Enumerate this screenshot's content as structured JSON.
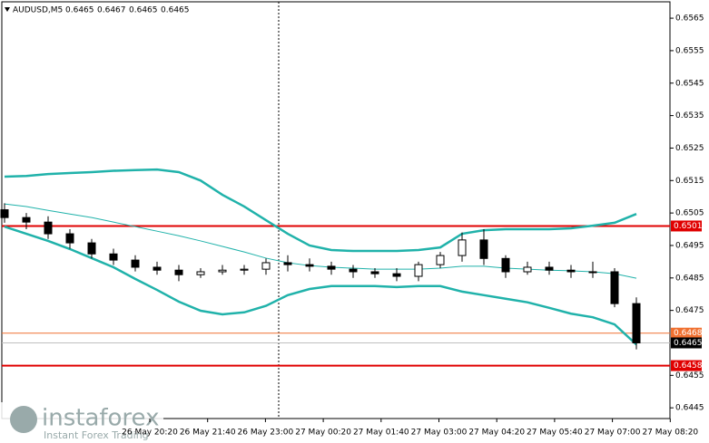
{
  "chart_data": {
    "type": "candlestick",
    "title": "AUDUSD,M5",
    "header_ohlc": [
      0.6465,
      0.6467,
      0.6465,
      0.6465
    ],
    "ylim": [
      0.64417,
      0.65706
    ],
    "yticks": [
      0.6565,
      0.6555,
      0.6545,
      0.6535,
      0.6525,
      0.6515,
      0.6505,
      0.6495,
      0.6485,
      0.6475,
      0.6455,
      0.6445
    ],
    "xlabels": [
      "26 May 20:20",
      "26 May 21:40",
      "26 May 23:00",
      "27 May 00:20",
      "27 May 01:40",
      "27 May 03:00",
      "27 May 04:20",
      "27 May 05:40",
      "27 May 07:00",
      "27 May 08:20"
    ],
    "open": [
      0.6506,
      0.65036,
      0.65022,
      0.64986,
      0.64958,
      0.64924,
      0.64905,
      0.64883,
      0.64874,
      0.6486,
      0.64869,
      0.64874,
      0.64877,
      0.64897,
      0.64891,
      0.64886,
      0.64877,
      0.64869,
      0.64863,
      0.64855,
      0.64891,
      0.64919,
      0.64967,
      0.6491,
      0.64869,
      0.64883,
      0.64874,
      0.64869,
      0.64869,
      0.64771
    ],
    "high": [
      0.6508,
      0.6505,
      0.6504,
      0.65,
      0.6497,
      0.6494,
      0.6492,
      0.649,
      0.6489,
      0.6488,
      0.6489,
      0.6489,
      0.6491,
      0.6492,
      0.6491,
      0.649,
      0.6489,
      0.6488,
      0.6488,
      0.649,
      0.6493,
      0.6499,
      0.65,
      0.6492,
      0.649,
      0.649,
      0.6489,
      0.649,
      0.6488,
      0.6479
    ],
    "low": [
      0.6502,
      0.65,
      0.6497,
      0.6494,
      0.6491,
      0.6489,
      0.6487,
      0.6486,
      0.6484,
      0.6485,
      0.6486,
      0.6486,
      0.6486,
      0.6487,
      0.6487,
      0.6486,
      0.6485,
      0.6485,
      0.6484,
      0.6484,
      0.6488,
      0.649,
      0.6489,
      0.6485,
      0.6486,
      0.6486,
      0.6485,
      0.6485,
      0.6476,
      0.6463
    ],
    "close": [
      0.65036,
      0.65022,
      0.64986,
      0.64958,
      0.64924,
      0.64905,
      0.64883,
      0.64874,
      0.6486,
      0.64869,
      0.64874,
      0.64877,
      0.64897,
      0.64891,
      0.64886,
      0.64877,
      0.64869,
      0.64863,
      0.64855,
      0.64891,
      0.64919,
      0.64967,
      0.6491,
      0.64869,
      0.64883,
      0.64874,
      0.64869,
      0.64869,
      0.64771,
      0.6465
    ],
    "bollinger_color": "#20b2aa",
    "ma_color": "#20b2aa",
    "upper_band": [
      0.65162,
      0.65164,
      0.6517,
      0.65173,
      0.65176,
      0.6518,
      0.65182,
      0.65184,
      0.65176,
      0.6515,
      0.65106,
      0.6507,
      0.65028,
      0.64986,
      0.6495,
      0.64936,
      0.64933,
      0.64933,
      0.64933,
      0.64936,
      0.64944,
      0.64986,
      0.64997,
      0.65,
      0.65,
      0.65,
      0.65003,
      0.65011,
      0.6502,
      0.65047
    ],
    "middle_band": [
      0.65078,
      0.6507,
      0.65058,
      0.65047,
      0.65036,
      0.65022,
      0.65008,
      0.64994,
      0.6498,
      0.64964,
      0.64947,
      0.6493,
      0.64911,
      0.64897,
      0.64888,
      0.64883,
      0.6488,
      0.64877,
      0.64877,
      0.64877,
      0.6488,
      0.64886,
      0.64886,
      0.6488,
      0.64877,
      0.64874,
      0.64872,
      0.64869,
      0.64863,
      0.64849
    ],
    "lower_band": [
      0.65008,
      0.64986,
      0.64964,
      0.64939,
      0.64911,
      0.64883,
      0.64847,
      0.64813,
      0.64777,
      0.64749,
      0.64738,
      0.64744,
      0.64764,
      0.64797,
      0.64816,
      0.64825,
      0.64825,
      0.64825,
      0.64822,
      0.64825,
      0.64825,
      0.64808,
      0.64797,
      0.64786,
      0.64775,
      0.64758,
      0.6474,
      0.64729,
      0.64707,
      0.64645
    ],
    "levels": [
      {
        "value": 0.6501,
        "color": "#e00000"
      },
      {
        "value": 0.6468,
        "color": "#f07030"
      },
      {
        "value": 0.6465,
        "color": "#c0c0c0"
      },
      {
        "value": 0.6458,
        "color": "#e00000"
      }
    ],
    "watermark": {
      "brand": "instaforex",
      "tagline": "Instant Forex Trading"
    }
  }
}
